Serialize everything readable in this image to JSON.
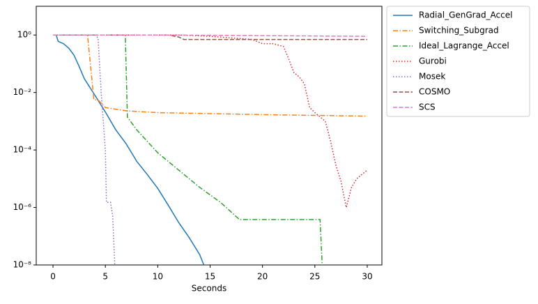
{
  "chart_data": {
    "type": "line",
    "xlabel": "Seconds",
    "log_y": true,
    "xlim": [
      -1.6,
      31.4
    ],
    "xticks": [
      0,
      5,
      10,
      15,
      20,
      25,
      30
    ],
    "ylim": [
      1e-08,
      10
    ],
    "yticks": [
      {
        "value": 1e-08,
        "label": "10⁻⁸"
      },
      {
        "value": 1e-06,
        "label": "10⁻⁶"
      },
      {
        "value": 0.0001,
        "label": "10⁻⁴"
      },
      {
        "value": 0.01,
        "label": "10⁻²"
      },
      {
        "value": 1,
        "label": "10⁰"
      }
    ],
    "legend": "outside upper right",
    "series": [
      {
        "name": "Radial_GenGrad_Accel",
        "color": "#1f77b4",
        "dash": "solid",
        "x": [
          0.3,
          0.5,
          1,
          1.5,
          2,
          2.5,
          3,
          4,
          5,
          6,
          7,
          8,
          9,
          10,
          11,
          12,
          13,
          14,
          14.4
        ],
        "values": [
          1,
          0.6,
          0.5,
          0.35,
          0.2,
          0.08,
          0.03,
          0.008,
          0.0021,
          0.0005,
          0.00016,
          4e-05,
          1.4e-05,
          4.6e-06,
          1.2e-06,
          3e-07,
          9e-08,
          2.3e-08,
          1e-08
        ]
      },
      {
        "name": "Switching_Subgrad",
        "color": "#ff7f0e",
        "dash": "dashdot",
        "x": [
          0,
          3.3,
          3.9,
          4.3,
          5,
          7,
          10,
          20,
          30
        ],
        "values": [
          1,
          1,
          0.0056,
          0.0055,
          0.003,
          0.0023,
          0.002,
          0.0017,
          0.0015
        ]
      },
      {
        "name": "Ideal_Lagrange_Accel",
        "color": "#2ca02c",
        "dash": "dashdot",
        "x": [
          0,
          6.9,
          7.1,
          8,
          9,
          10,
          12,
          14,
          16,
          17,
          17.8,
          25.5,
          25.7
        ],
        "values": [
          1,
          1,
          0.0014,
          0.0005,
          0.0002,
          8e-05,
          2e-05,
          5e-06,
          1.5e-06,
          7e-07,
          3.8e-07,
          3.8e-07,
          1e-08
        ]
      },
      {
        "name": "Gurobi",
        "color": "#d62728",
        "dash": "dotted",
        "x": [
          0,
          12,
          15,
          19,
          20,
          21,
          22,
          22.5,
          23,
          23.5,
          24,
          24.5,
          25,
          26,
          26.5,
          27,
          27.5,
          28,
          28.5,
          29,
          30
        ],
        "values": [
          1,
          1,
          0.9,
          0.7,
          0.5,
          0.5,
          0.4,
          0.15,
          0.05,
          0.035,
          0.02,
          0.003,
          0.002,
          0.001,
          0.0002,
          3e-05,
          8e-06,
          1e-06,
          5e-06,
          1e-05,
          2e-05
        ]
      },
      {
        "name": "Mosek",
        "color": "#9467bd",
        "dash": "dotted",
        "x": [
          0,
          4,
          4.3,
          4.6,
          5,
          5.1,
          5.5,
          5.7,
          5.9
        ],
        "values": [
          1,
          1,
          0.8,
          0.01,
          0.0001,
          1.5e-06,
          1.5e-06,
          5e-07,
          1e-08
        ]
      },
      {
        "name": "COSMO",
        "color": "#8c564b",
        "dash": "dashed",
        "x": [
          0,
          11,
          12,
          12.5,
          30
        ],
        "values": [
          1,
          1,
          0.85,
          0.7,
          0.7
        ]
      },
      {
        "name": "SCS",
        "color": "#e377c2",
        "dash": "dashed",
        "x": [
          0,
          10,
          30
        ],
        "values": [
          1,
          1,
          0.9
        ]
      }
    ]
  }
}
